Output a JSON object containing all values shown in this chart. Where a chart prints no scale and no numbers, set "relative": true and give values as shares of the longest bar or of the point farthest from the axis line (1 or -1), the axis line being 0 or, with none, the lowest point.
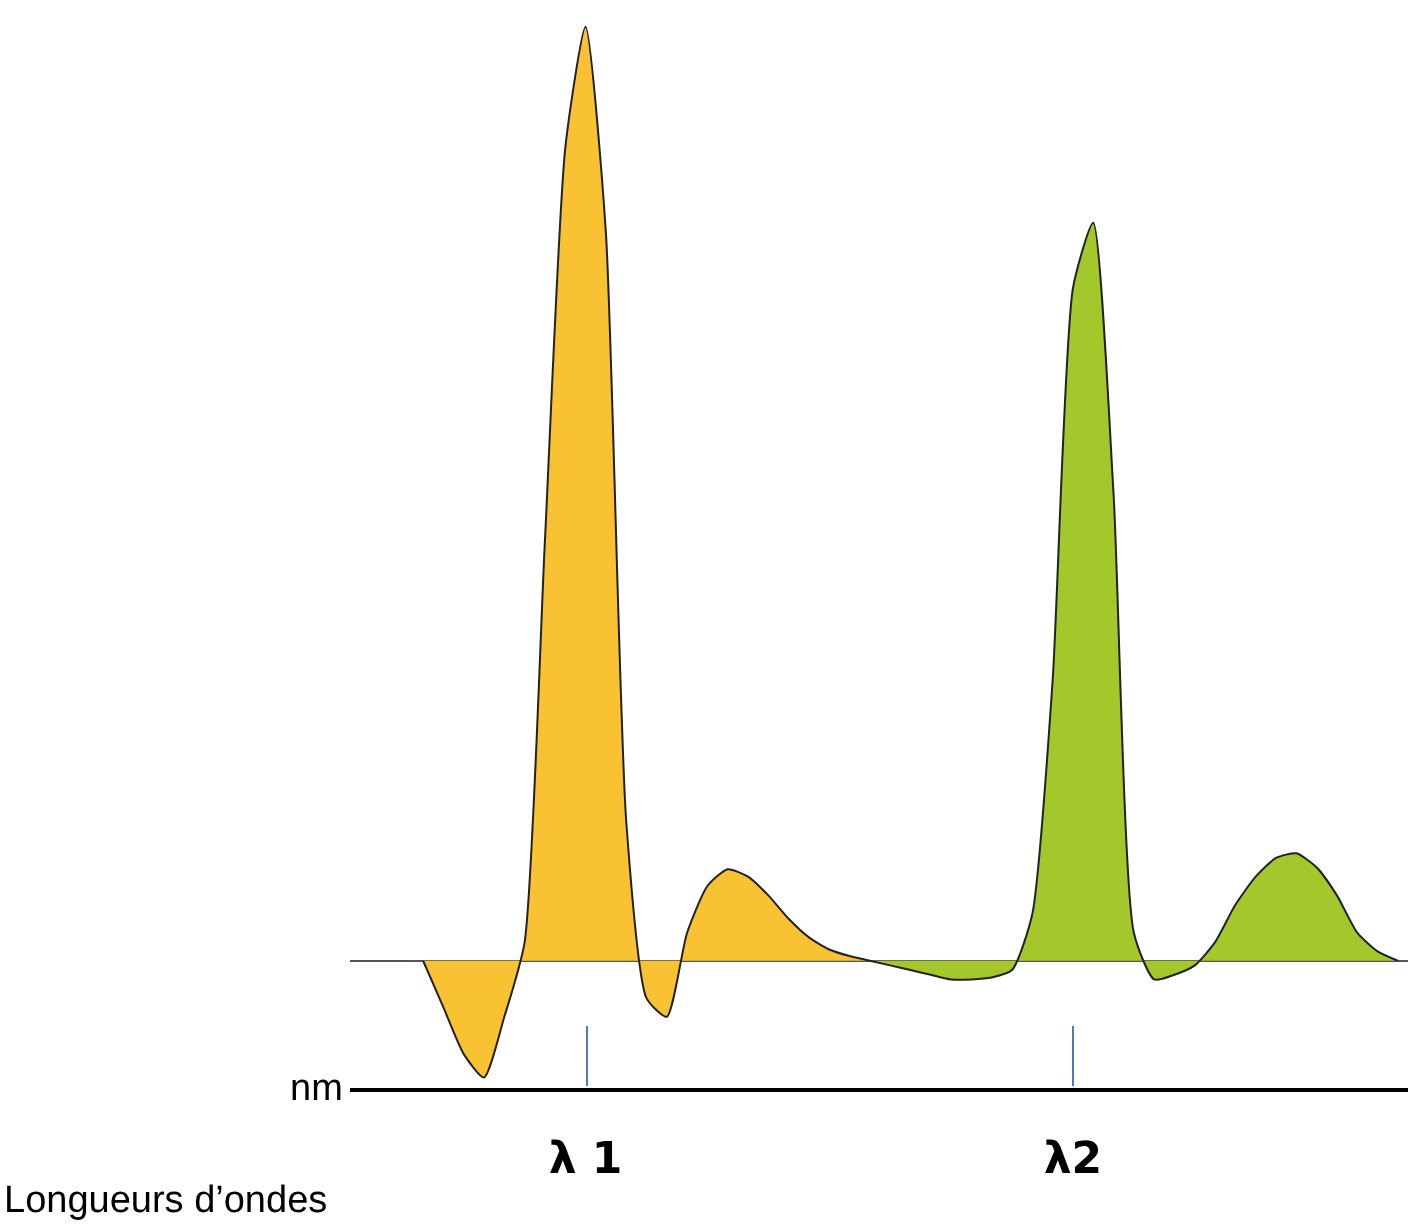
{
  "chart_data": {
    "type": "area",
    "relative": true,
    "xlabel": "Longueurs d’ondes",
    "annotations": [
      "nm"
    ],
    "categories": [
      null,
      null,
      null,
      null,
      null,
      null,
      null,
      null,
      "λ 1",
      null,
      null,
      null,
      null,
      null,
      null,
      null,
      null,
      null,
      null,
      null,
      null,
      null,
      null,
      null,
      null,
      null,
      null,
      null,
      null,
      null,
      null,
      null,
      "λ2",
      null,
      null,
      null,
      null,
      null,
      null,
      null,
      null,
      null,
      null,
      null,
      null,
      null,
      null,
      null,
      null
    ],
    "series": [
      {
        "color": "#f9c232",
        "values": [
          0,
          -0.05,
          -0.1,
          -0.125,
          -0.06,
          0.02,
          0.45,
          0.87,
          1,
          0.78,
          0.15,
          -0.04,
          -0.06,
          0.03,
          0.08,
          0.098,
          0.09,
          0.07,
          0.045,
          0.025,
          0.012,
          0.005,
          0,
          null,
          null,
          null,
          null,
          null,
          null,
          null,
          null,
          null,
          null,
          null,
          null,
          null,
          null,
          null,
          null,
          null,
          null,
          null,
          null,
          null,
          null,
          null,
          null,
          null,
          null
        ]
      },
      {
        "color": "#a4c72c",
        "values": [
          null,
          null,
          null,
          null,
          null,
          null,
          null,
          null,
          null,
          null,
          null,
          null,
          null,
          null,
          null,
          null,
          null,
          null,
          null,
          null,
          null,
          null,
          0,
          -0.005,
          -0.01,
          -0.015,
          -0.02,
          -0.02,
          -0.018,
          -0.01,
          0.05,
          0.3,
          0.72,
          0.79,
          0.5,
          0.03,
          -0.02,
          -0.015,
          -0.005,
          0.02,
          0.06,
          0.09,
          0.11,
          0.115,
          0.1,
          0.07,
          0.03,
          0.01,
          0
        ]
      }
    ]
  }
}
